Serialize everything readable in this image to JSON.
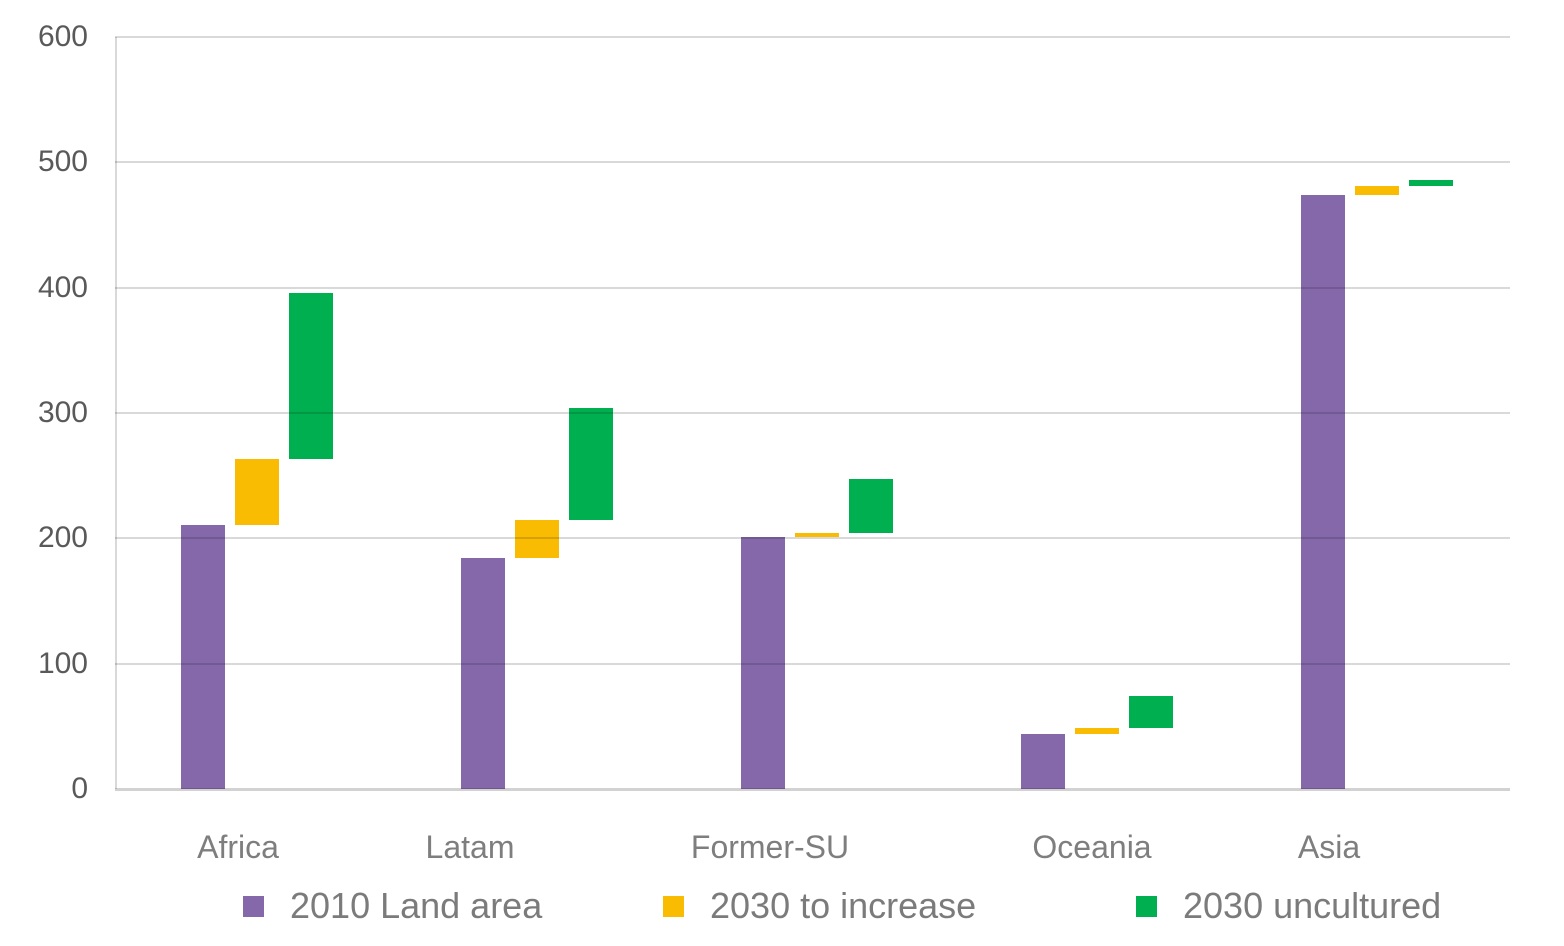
{
  "chart_data": {
    "type": "bar",
    "subtype": "waterfall-floating-bars",
    "categories": [
      "Africa",
      "Latam",
      "Former-SU",
      "Oceania",
      "Asia"
    ],
    "series": [
      {
        "name": "2010 Land area",
        "color": "#8568AA",
        "ranges": [
          [
            0,
            211
          ],
          [
            0,
            184
          ],
          [
            0,
            201
          ],
          [
            0,
            44
          ],
          [
            0,
            474
          ]
        ]
      },
      {
        "name": "2030 to increase",
        "color": "#F9BC02",
        "ranges": [
          [
            211,
            263
          ],
          [
            184,
            215
          ],
          [
            201,
            204
          ],
          [
            44,
            49
          ],
          [
            474,
            481
          ]
        ]
      },
      {
        "name": "2030 uncultured",
        "color": "#00B050",
        "ranges": [
          [
            263,
            396
          ],
          [
            215,
            304
          ],
          [
            204,
            247
          ],
          [
            49,
            74
          ],
          [
            481,
            486
          ]
        ]
      }
    ],
    "ylim": [
      0,
      600
    ],
    "yticks": [
      0,
      100,
      200,
      300,
      400,
      500,
      600
    ],
    "grid": true,
    "legend_position": "bottom",
    "title": "",
    "xlabel": "",
    "ylabel": ""
  },
  "colors": {
    "background": "#FFFFFF",
    "gridline": "#D9D9D9",
    "axis_line": "#D2D2D2",
    "tick_text": "#595959",
    "category_text": "#7E7E7E",
    "legend_text": "#7B7B7B"
  }
}
